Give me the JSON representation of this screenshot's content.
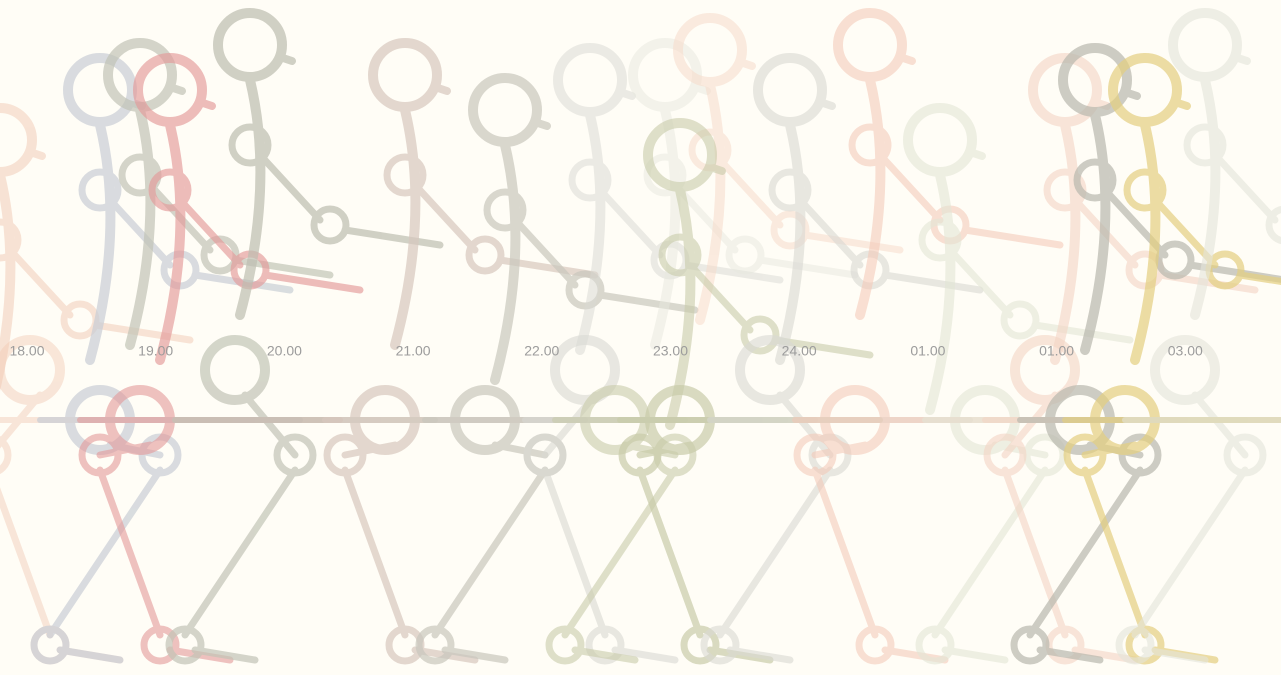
{
  "timeline": {
    "labels": [
      "18.00",
      "19.00",
      "20.00",
      "21.00",
      "22.00",
      "23.00",
      "24.00",
      "01.00",
      "01.00",
      "03.00"
    ]
  }
}
